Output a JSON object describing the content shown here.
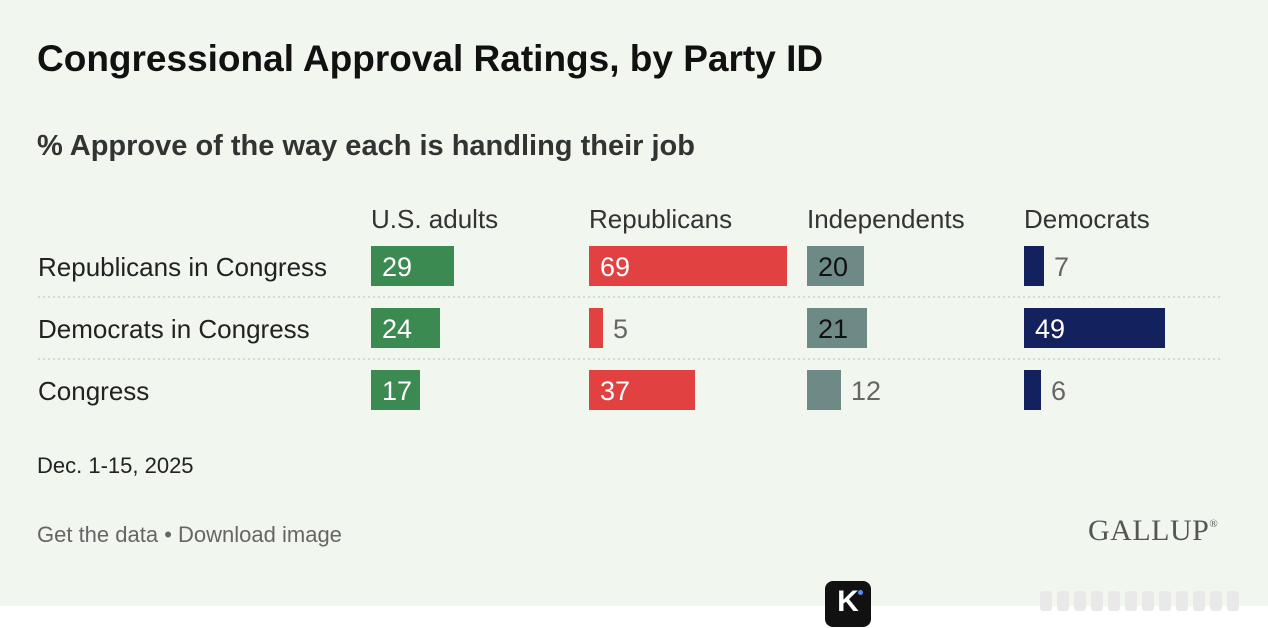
{
  "header": {
    "title": "Congressional Approval Ratings, by Party ID",
    "subtitle": "% Approve of the way each is handling their job"
  },
  "chart_data": {
    "type": "bar",
    "title": "Congressional Approval Ratings, by Party ID",
    "subtitle": "% Approve of the way each is handling their job",
    "columns": [
      {
        "name": "U.S. adults",
        "color": "#3a8a51"
      },
      {
        "name": "Republicans",
        "color": "#e24142"
      },
      {
        "name": "Independents",
        "color": "#6e8a87"
      },
      {
        "name": "Democrats",
        "color": "#13215f"
      }
    ],
    "rows": [
      {
        "label": "Republicans in Congress",
        "values": [
          29,
          69,
          20,
          7
        ]
      },
      {
        "label": "Democrats in Congress",
        "values": [
          24,
          5,
          21,
          49
        ]
      },
      {
        "label": "Congress",
        "values": [
          17,
          37,
          12,
          6
        ]
      }
    ],
    "xlim": [
      0,
      69
    ],
    "unit": "%"
  },
  "footer": {
    "date": "Dec. 1-15, 2025",
    "get_data_label": "Get the data",
    "separator": "•",
    "download_label": "Download image",
    "logo_text": "GALLUP",
    "logo_mark": "®"
  },
  "watermark": {
    "badge_letter": "K"
  }
}
